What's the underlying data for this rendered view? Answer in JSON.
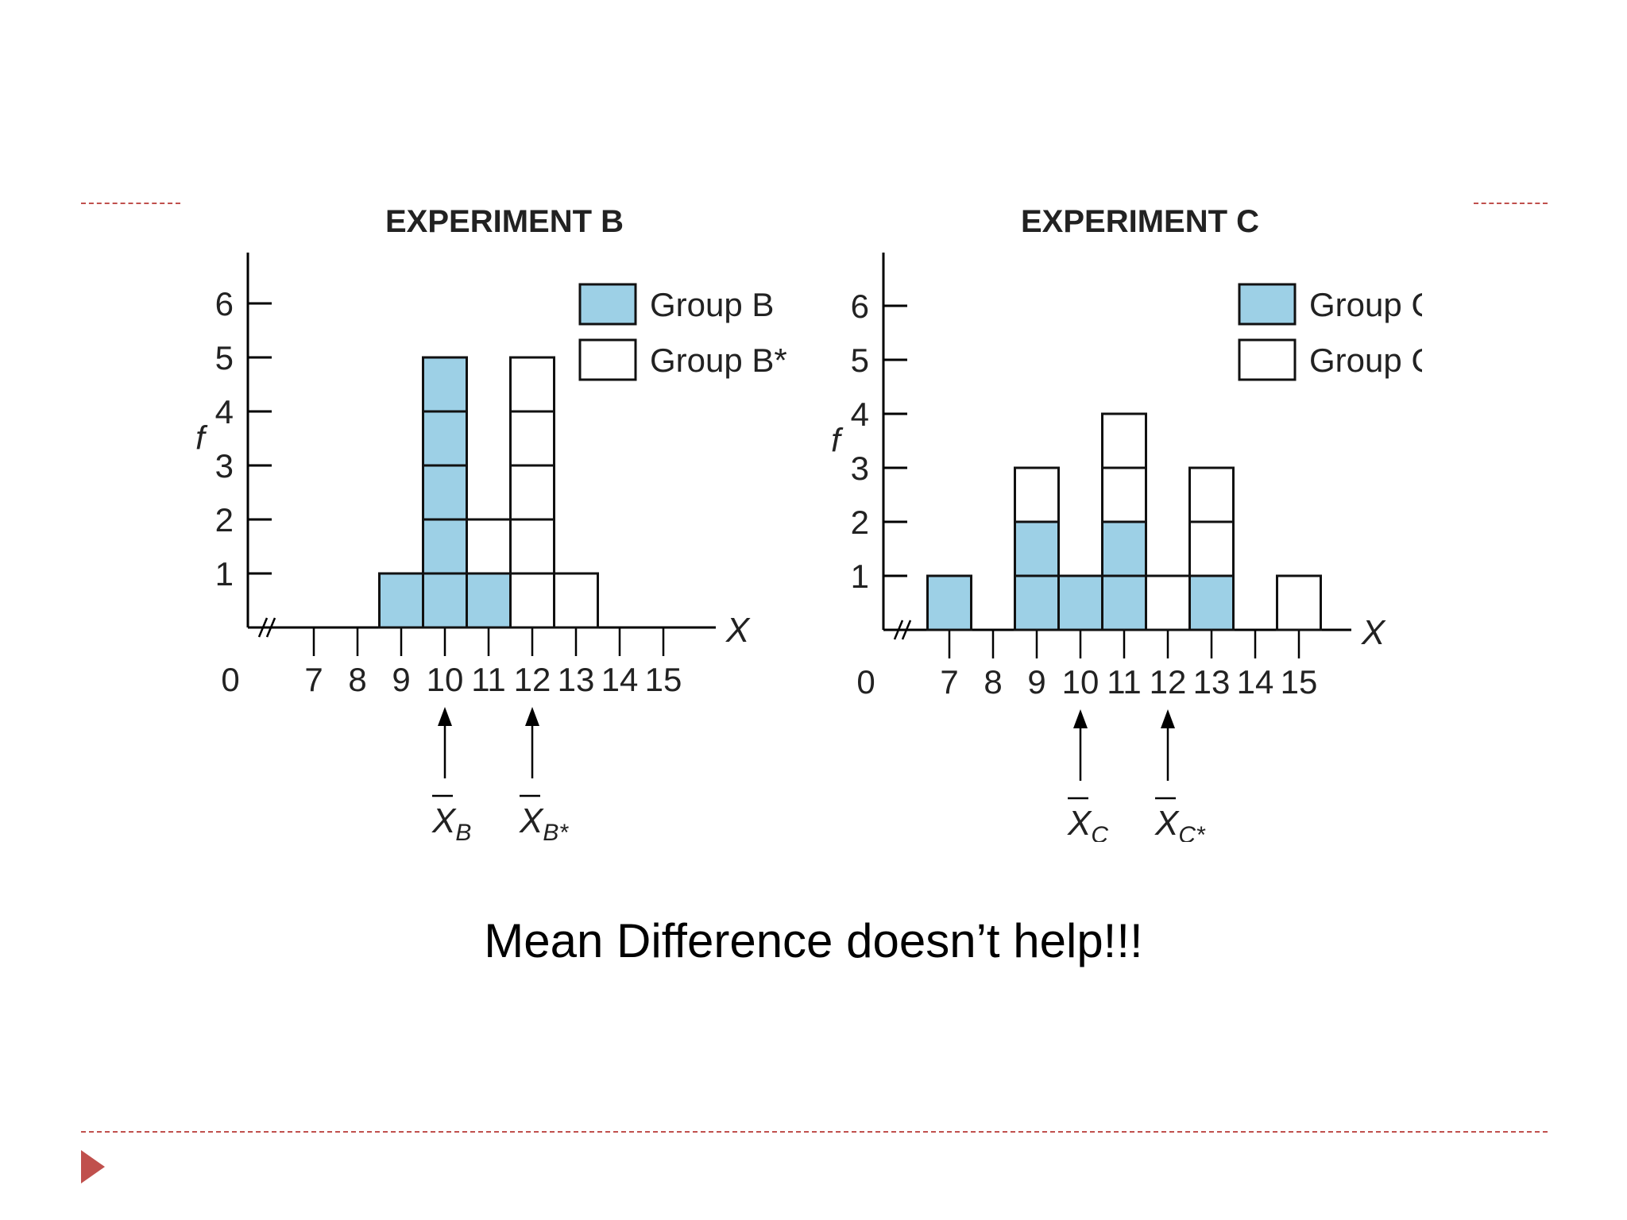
{
  "slide": {
    "caption": "Mean Difference doesn’t help!!!",
    "accent_color": "#c0504d",
    "bullet_icon": "triangle-bullet-icon"
  },
  "chart_data": [
    {
      "type": "bar",
      "subtype": "stacked-frequency-blocks",
      "title": "EXPERIMENT B",
      "xlabel": "X",
      "ylabel": "f",
      "x_ticks": [
        "0",
        "7",
        "8",
        "9",
        "10",
        "11",
        "12",
        "13",
        "14",
        "15"
      ],
      "y_ticks": [
        "1",
        "2",
        "3",
        "4",
        "5",
        "6"
      ],
      "ylim": [
        0,
        6.5
      ],
      "axis_break": true,
      "fill_color": "#9dd0e6",
      "series": [
        {
          "name": "Group B",
          "filled": true,
          "x": [
            9,
            10,
            11
          ],
          "values": [
            1,
            5,
            1
          ]
        },
        {
          "name": "Group B*",
          "filled": false,
          "x": [
            11,
            12,
            13
          ],
          "values": [
            1,
            5,
            1
          ]
        }
      ],
      "means": [
        {
          "label": "X",
          "sub": "B",
          "x": 10
        },
        {
          "label": "X",
          "sub": "B*",
          "x": 12
        }
      ],
      "legend_position": "top-right"
    },
    {
      "type": "bar",
      "subtype": "stacked-frequency-blocks",
      "title": "EXPERIMENT C",
      "xlabel": "X",
      "ylabel": "f",
      "x_ticks": [
        "0",
        "7",
        "8",
        "9",
        "10",
        "11",
        "12",
        "13",
        "14",
        "15"
      ],
      "y_ticks": [
        "1",
        "2",
        "3",
        "4",
        "5",
        "6"
      ],
      "ylim": [
        0,
        6.5
      ],
      "axis_break": true,
      "fill_color": "#9dd0e6",
      "series": [
        {
          "name": "Group C",
          "filled": true,
          "x": [
            7,
            9,
            10,
            11,
            13
          ],
          "values": [
            1,
            2,
            1,
            2,
            1
          ]
        },
        {
          "name": "Group C*",
          "filled": false,
          "x": [
            9,
            11,
            12,
            13,
            15
          ],
          "values": [
            1,
            2,
            1,
            2,
            1
          ]
        }
      ],
      "means": [
        {
          "label": "X",
          "sub": "C",
          "x": 10
        },
        {
          "label": "X",
          "sub": "C*",
          "x": 12
        }
      ],
      "legend_position": "top-right"
    }
  ]
}
